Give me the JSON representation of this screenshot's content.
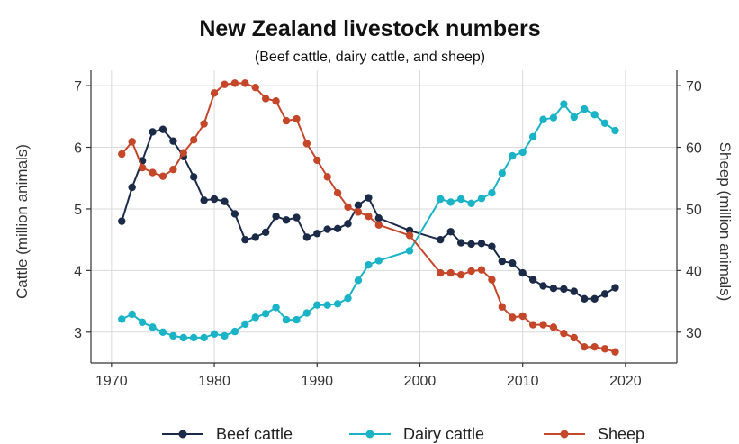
{
  "chart_data": {
    "type": "line",
    "title": "New Zealand livestock numbers",
    "subtitle": "(Beef cattle, dairy cattle, and sheep)",
    "xlabel": "",
    "ylabel_left": "Cattle (million animals)",
    "ylabel_right": "Sheep (million animals)",
    "xlim": [
      1968,
      2025
    ],
    "ylim_left": [
      2.5,
      7.25
    ],
    "ylim_right": [
      25,
      72.5
    ],
    "xticks": [
      1970,
      1980,
      1990,
      2000,
      2010,
      2020
    ],
    "yticks_left": [
      3,
      4,
      5,
      6,
      7
    ],
    "yticks_right": [
      30,
      40,
      50,
      60,
      70
    ],
    "grid": true,
    "legend_position": "bottom",
    "series": [
      {
        "name": "Beef cattle",
        "axis": "left",
        "color": "#1b2a47",
        "x": [
          1971,
          1972,
          1973,
          1974,
          1975,
          1976,
          1977,
          1978,
          1979,
          1980,
          1981,
          1982,
          1983,
          1984,
          1985,
          1986,
          1987,
          1988,
          1989,
          1990,
          1991,
          1992,
          1993,
          1994,
          1995,
          1996,
          1999,
          2002,
          2003,
          2004,
          2005,
          2006,
          2007,
          2008,
          2009,
          2010,
          2011,
          2012,
          2013,
          2014,
          2015,
          2016,
          2017,
          2018,
          2019
        ],
        "y": [
          4.8,
          5.35,
          5.78,
          6.25,
          6.29,
          6.1,
          5.85,
          5.52,
          5.14,
          5.16,
          5.12,
          4.92,
          4.5,
          4.54,
          4.62,
          4.88,
          4.82,
          4.86,
          4.54,
          4.6,
          4.67,
          4.68,
          4.76,
          5.06,
          5.18,
          4.85,
          4.65,
          4.5,
          4.63,
          4.45,
          4.43,
          4.44,
          4.39,
          4.15,
          4.12,
          3.96,
          3.85,
          3.75,
          3.71,
          3.7,
          3.66,
          3.54,
          3.54,
          3.62,
          3.72
        ]
      },
      {
        "name": "Dairy cattle",
        "axis": "left",
        "color": "#1bb3c6",
        "x": [
          1971,
          1972,
          1973,
          1974,
          1975,
          1976,
          1977,
          1978,
          1979,
          1980,
          1981,
          1982,
          1983,
          1984,
          1985,
          1986,
          1987,
          1988,
          1989,
          1990,
          1991,
          1992,
          1993,
          1994,
          1995,
          1996,
          1999,
          2002,
          2003,
          2004,
          2005,
          2006,
          2007,
          2008,
          2009,
          2010,
          2011,
          2012,
          2013,
          2014,
          2015,
          2016,
          2017,
          2018,
          2019
        ],
        "y": [
          3.21,
          3.29,
          3.16,
          3.08,
          3.0,
          2.94,
          2.91,
          2.91,
          2.91,
          2.97,
          2.94,
          3.01,
          3.13,
          3.24,
          3.3,
          3.4,
          3.2,
          3.2,
          3.31,
          3.44,
          3.44,
          3.46,
          3.55,
          3.84,
          4.09,
          4.16,
          4.32,
          5.16,
          5.11,
          5.16,
          5.09,
          5.17,
          5.26,
          5.58,
          5.86,
          5.92,
          6.17,
          6.45,
          6.48,
          6.7,
          6.49,
          6.62,
          6.53,
          6.39,
          6.27
        ]
      },
      {
        "name": "Sheep",
        "axis": "right",
        "color": "#c4472a",
        "x": [
          1971,
          1972,
          1973,
          1974,
          1975,
          1976,
          1977,
          1978,
          1979,
          1980,
          1981,
          1982,
          1983,
          1984,
          1985,
          1986,
          1987,
          1988,
          1989,
          1990,
          1991,
          1992,
          1993,
          1994,
          1995,
          1996,
          1999,
          2002,
          2003,
          2004,
          2005,
          2006,
          2007,
          2008,
          2009,
          2010,
          2011,
          2012,
          2013,
          2014,
          2015,
          2016,
          2017,
          2018,
          2019
        ],
        "y": [
          58.9,
          60.9,
          56.7,
          55.9,
          55.3,
          56.4,
          59.1,
          61.2,
          63.8,
          68.8,
          70.2,
          70.4,
          70.4,
          69.7,
          67.9,
          67.5,
          64.3,
          64.6,
          60.6,
          57.9,
          55.2,
          52.6,
          50.3,
          49.5,
          48.8,
          47.4,
          45.7,
          39.6,
          39.6,
          39.3,
          39.9,
          40.1,
          38.5,
          34.1,
          32.4,
          32.6,
          31.2,
          31.2,
          30.8,
          29.8,
          29.1,
          27.6,
          27.6,
          27.3,
          26.8
        ]
      }
    ]
  }
}
